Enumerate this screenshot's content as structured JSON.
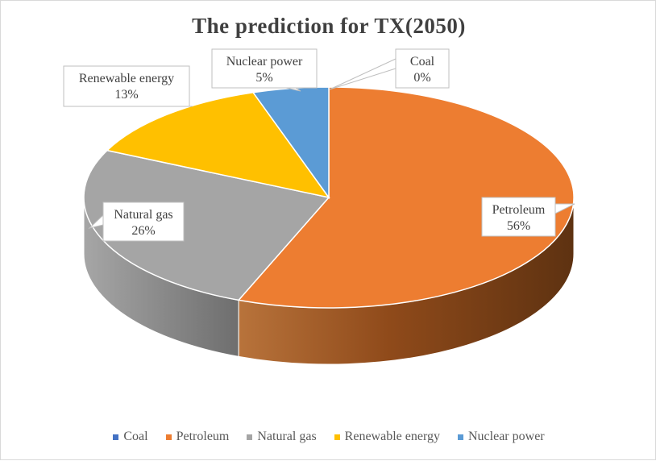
{
  "chart_data": {
    "type": "pie",
    "title": "The prediction for TX(2050)",
    "slices": [
      {
        "label": "Coal",
        "value": 0,
        "display": "0%",
        "color": "#4472c4"
      },
      {
        "label": "Petroleum",
        "value": 56,
        "display": "56%",
        "color": "#ed7d31"
      },
      {
        "label": "Natural gas",
        "value": 26,
        "display": "26%",
        "color": "#a5a5a5"
      },
      {
        "label": "Renewable energy",
        "value": 13,
        "display": "13%",
        "color": "#ffc000"
      },
      {
        "label": "Nuclear power",
        "value": 5,
        "display": "5%",
        "color": "#5b9bd5"
      }
    ],
    "legend_position": "bottom",
    "style": "3d"
  }
}
